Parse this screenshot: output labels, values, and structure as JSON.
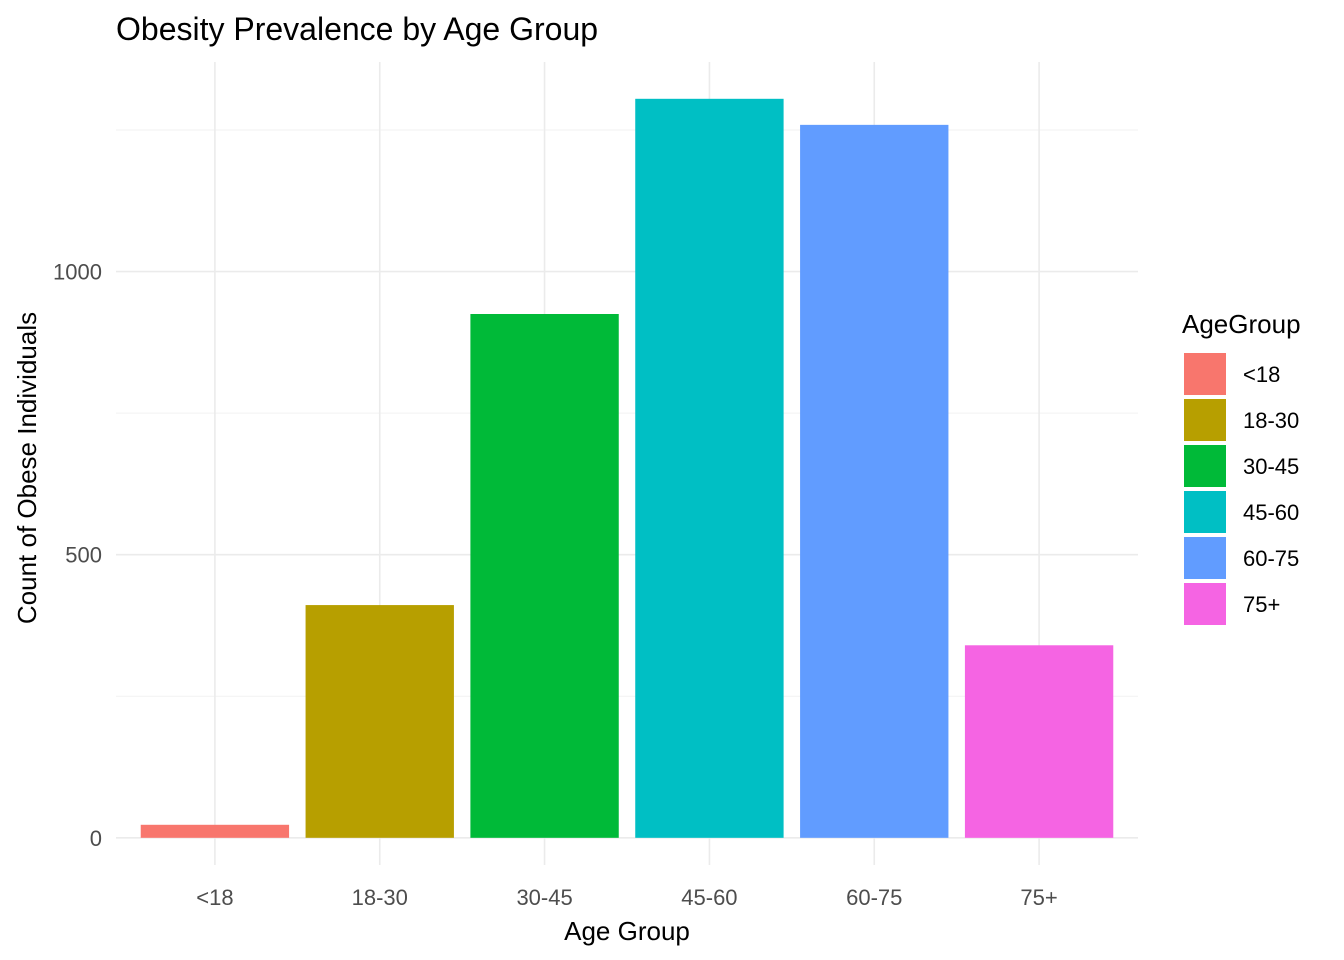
{
  "chart_data": {
    "type": "bar",
    "title": "Obesity Prevalence by Age Group",
    "xlabel": "Age Group",
    "ylabel": "Count of Obese Individuals",
    "categories": [
      "<18",
      "18-30",
      "30-45",
      "45-60",
      "60-75",
      "75+"
    ],
    "values": [
      23,
      411,
      925,
      1305,
      1259,
      340
    ],
    "colors": [
      "#F8766D",
      "#B79F00",
      "#00BA38",
      "#00BFC4",
      "#619CFF",
      "#F564E3"
    ],
    "ylim": [
      -48,
      1370
    ],
    "yticks": [
      0,
      500,
      1000
    ],
    "yticks_minor": [
      250,
      750,
      1250
    ],
    "ytick_labels": [
      "0",
      "500",
      "1000"
    ],
    "grid": true,
    "legend": {
      "title": "AgeGroup",
      "position": "right",
      "entries": [
        "<18",
        "18-30",
        "30-45",
        "45-60",
        "60-75",
        "75+"
      ]
    }
  }
}
